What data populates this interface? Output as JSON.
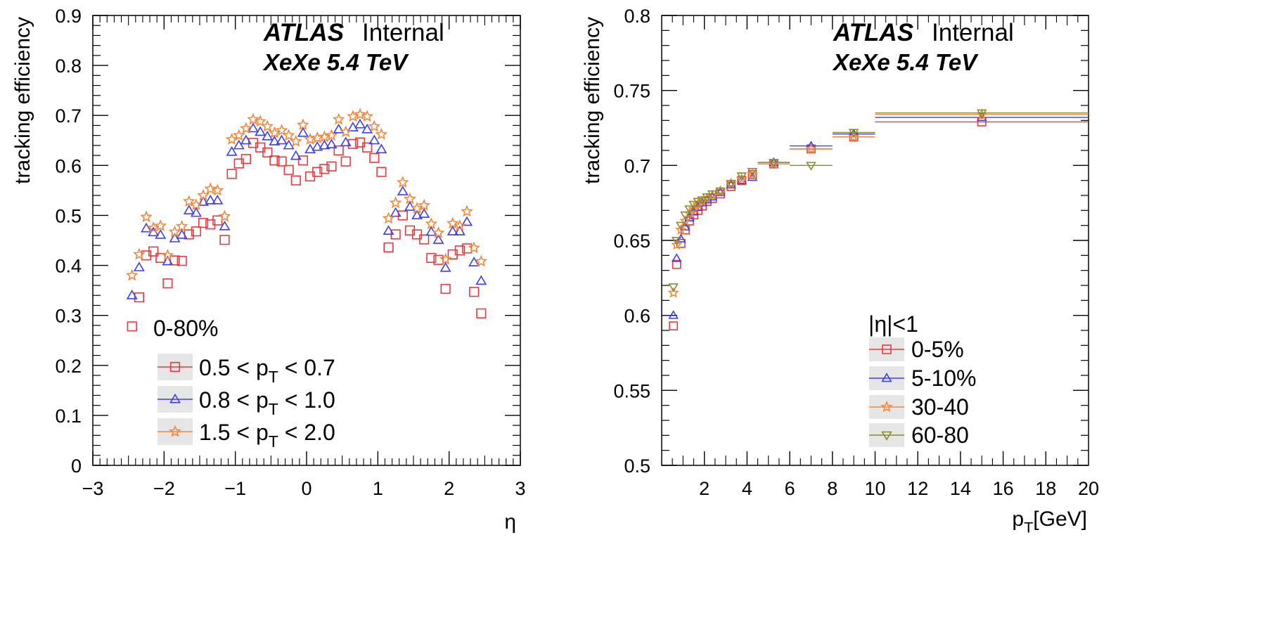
{
  "colors": {
    "red": "#e8393e",
    "blue": "#3b3ff0",
    "orange": "#f0883c",
    "olive": "#8a8a30",
    "legend_bg": "#e6e6e6"
  },
  "chart_data": [
    {
      "type": "scatter",
      "xlabel": "η",
      "ylabel": "tracking efficiency",
      "xlim": [
        -3,
        3
      ],
      "ylim": [
        0,
        0.9
      ],
      "xticks": [
        "−3",
        "−2",
        "−1",
        "0",
        "1",
        "2",
        "3"
      ],
      "yticks": [
        "0",
        "0.1",
        "0.2",
        "0.3",
        "0.4",
        "0.5",
        "0.6",
        "0.7",
        "0.8",
        "0.9"
      ],
      "annotation": {
        "atlas": "ATLAS",
        "internal": "Internal",
        "energy": "XeXe 5.4 TeV"
      },
      "legend": {
        "header": "0-80%",
        "placement": "bottom-left"
      },
      "series": [
        {
          "name": "0.5 < p_T < 0.7",
          "label_main": "0.5 < p",
          "label_sub": "T",
          "label_tail": " < 0.7",
          "marker": "square",
          "color": "red",
          "x": [
            -2.45,
            -2.35,
            -2.25,
            -2.15,
            -2.05,
            -1.95,
            -1.85,
            -1.75,
            -1.65,
            -1.55,
            -1.45,
            -1.35,
            -1.25,
            -1.15,
            -1.05,
            -0.95,
            -0.85,
            -0.75,
            -0.65,
            -0.55,
            -0.45,
            -0.35,
            -0.25,
            -0.15,
            -0.05,
            0.05,
            0.15,
            0.25,
            0.35,
            0.45,
            0.55,
            0.65,
            0.75,
            0.85,
            0.95,
            1.05,
            1.15,
            1.25,
            1.35,
            1.45,
            1.55,
            1.65,
            1.75,
            1.85,
            1.95,
            2.05,
            2.15,
            2.25,
            2.35,
            2.45
          ],
          "y": [
            0.278,
            0.336,
            0.42,
            0.428,
            0.415,
            0.364,
            0.41,
            0.409,
            0.462,
            0.468,
            0.485,
            0.482,
            0.49,
            0.451,
            0.583,
            0.604,
            0.613,
            0.645,
            0.636,
            0.626,
            0.61,
            0.608,
            0.591,
            0.57,
            0.61,
            0.578,
            0.587,
            0.593,
            0.598,
            0.63,
            0.608,
            0.643,
            0.646,
            0.636,
            0.615,
            0.587,
            0.436,
            0.462,
            0.5,
            0.47,
            0.462,
            0.452,
            0.415,
            0.411,
            0.353,
            0.422,
            0.43,
            0.434,
            0.347,
            0.304
          ]
        },
        {
          "name": "0.8 < p_T < 1.0",
          "label_main": "0.8 < p",
          "label_sub": "T",
          "label_tail": " < 1.0",
          "marker": "triangle-up",
          "color": "blue",
          "x": [
            -2.45,
            -2.35,
            -2.25,
            -2.15,
            -2.05,
            -1.95,
            -1.85,
            -1.75,
            -1.65,
            -1.55,
            -1.45,
            -1.35,
            -1.25,
            -1.15,
            -1.05,
            -0.95,
            -0.85,
            -0.75,
            -0.65,
            -0.55,
            -0.45,
            -0.35,
            -0.25,
            -0.15,
            -0.05,
            0.05,
            0.15,
            0.25,
            0.35,
            0.45,
            0.55,
            0.65,
            0.75,
            0.85,
            0.95,
            1.05,
            1.15,
            1.25,
            1.35,
            1.45,
            1.55,
            1.65,
            1.75,
            1.85,
            1.95,
            2.05,
            2.15,
            2.25,
            2.35,
            2.45
          ],
          "y": [
            0.34,
            0.396,
            0.474,
            0.466,
            0.461,
            0.408,
            0.454,
            0.461,
            0.51,
            0.505,
            0.527,
            0.53,
            0.53,
            0.478,
            0.627,
            0.64,
            0.65,
            0.674,
            0.667,
            0.658,
            0.648,
            0.65,
            0.64,
            0.619,
            0.665,
            0.632,
            0.637,
            0.64,
            0.642,
            0.672,
            0.646,
            0.676,
            0.682,
            0.672,
            0.65,
            0.632,
            0.469,
            0.505,
            0.548,
            0.517,
            0.5,
            0.503,
            0.467,
            0.451,
            0.395,
            0.468,
            0.468,
            0.487,
            0.406,
            0.369
          ]
        },
        {
          "name": "1.5 < p_T < 2.0",
          "label_main": "1.5 < p",
          "label_sub": "T",
          "label_tail": " < 2.0",
          "marker": "star",
          "color": "orange",
          "x": [
            -2.45,
            -2.35,
            -2.25,
            -2.15,
            -2.05,
            -1.95,
            -1.85,
            -1.75,
            -1.65,
            -1.55,
            -1.45,
            -1.35,
            -1.25,
            -1.15,
            -1.05,
            -0.95,
            -0.85,
            -0.75,
            -0.65,
            -0.55,
            -0.45,
            -0.35,
            -0.25,
            -0.15,
            -0.05,
            0.05,
            0.15,
            0.25,
            0.35,
            0.45,
            0.55,
            0.65,
            0.75,
            0.85,
            0.95,
            1.05,
            1.15,
            1.25,
            1.35,
            1.45,
            1.55,
            1.65,
            1.75,
            1.85,
            1.95,
            2.05,
            2.15,
            2.25,
            2.35,
            2.45
          ],
          "y": [
            0.38,
            0.422,
            0.497,
            0.475,
            0.479,
            0.42,
            0.467,
            0.478,
            0.528,
            0.521,
            0.54,
            0.553,
            0.55,
            0.498,
            0.652,
            0.66,
            0.674,
            0.692,
            0.688,
            0.678,
            0.665,
            0.67,
            0.66,
            0.648,
            0.681,
            0.652,
            0.655,
            0.657,
            0.66,
            0.692,
            0.667,
            0.698,
            0.702,
            0.698,
            0.678,
            0.662,
            0.494,
            0.525,
            0.566,
            0.533,
            0.514,
            0.52,
            0.483,
            0.465,
            0.412,
            0.484,
            0.479,
            0.508,
            0.435,
            0.408
          ]
        }
      ]
    },
    {
      "type": "scatter",
      "xlabel_main": "p",
      "xlabel_sub": "T",
      "xlabel_tail": "[GeV]",
      "ylabel": "tracking efficiency",
      "xlim": [
        0,
        20
      ],
      "ylim": [
        0.5,
        0.8
      ],
      "xticks": [
        "2",
        "4",
        "6",
        "8",
        "10",
        "12",
        "14",
        "16",
        "18",
        "20"
      ],
      "yticks": [
        "0.5",
        "0.55",
        "0.6",
        "0.65",
        "0.7",
        "0.75",
        "0.8"
      ],
      "annotation": {
        "atlas": "ATLAS",
        "internal": "Internal",
        "energy": "XeXe 5.4 TeV"
      },
      "legend": {
        "header": "|η|<1",
        "placement": "bottom-right"
      },
      "bins": [
        [
          0.5,
          0.6
        ],
        [
          0.6,
          0.8
        ],
        [
          0.8,
          1.0
        ],
        [
          1.0,
          1.2
        ],
        [
          1.2,
          1.4
        ],
        [
          1.4,
          1.6
        ],
        [
          1.6,
          1.8
        ],
        [
          1.8,
          2.0
        ],
        [
          2.0,
          2.25
        ],
        [
          2.25,
          2.5
        ],
        [
          2.5,
          3.0
        ],
        [
          3.0,
          3.5
        ],
        [
          3.5,
          4.0
        ],
        [
          4.0,
          4.5
        ],
        [
          4.5,
          6.0
        ],
        [
          6.0,
          8.0
        ],
        [
          8.0,
          10.0
        ],
        [
          10.0,
          20.0
        ]
      ],
      "series": [
        {
          "name": "0-5%",
          "marker": "square",
          "color": "red",
          "y": [
            0.593,
            0.634,
            0.648,
            0.657,
            0.663,
            0.667,
            0.67,
            0.673,
            0.676,
            0.678,
            0.681,
            0.686,
            0.69,
            0.694,
            0.701,
            0.711,
            0.719,
            0.729
          ]
        },
        {
          "name": "5-10%",
          "marker": "triangle-up",
          "color": "blue",
          "y": [
            0.6,
            0.638,
            0.651,
            0.659,
            0.665,
            0.669,
            0.672,
            0.675,
            0.677,
            0.679,
            0.682,
            0.687,
            0.69,
            0.692,
            0.702,
            0.713,
            0.721,
            0.732
          ]
        },
        {
          "name": "30-40",
          "marker": "star",
          "color": "orange",
          "y": [
            0.615,
            0.647,
            0.657,
            0.663,
            0.668,
            0.671,
            0.674,
            0.676,
            0.678,
            0.68,
            0.683,
            0.688,
            0.691,
            0.694,
            0.701,
            0.711,
            0.719,
            0.734
          ]
        },
        {
          "name": "60-80",
          "marker": "triangle-down",
          "color": "olive",
          "y": [
            0.619,
            0.65,
            0.66,
            0.667,
            0.671,
            0.674,
            0.676,
            0.677,
            0.679,
            0.681,
            0.683,
            0.688,
            0.693,
            0.696,
            0.702,
            0.7,
            0.722,
            0.735
          ]
        }
      ]
    }
  ]
}
